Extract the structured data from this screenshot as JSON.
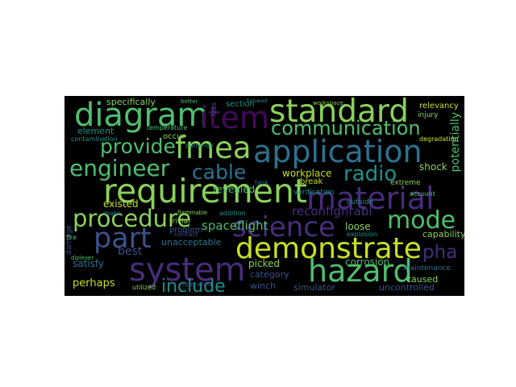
{
  "palette": {
    "background": "#000000",
    "light_green": "#8ad15a",
    "green": "#4fbf6f",
    "teal": "#23a884",
    "cyan_teal": "#21908c",
    "blue": "#2c728e",
    "indigo": "#3b528b",
    "purple": "#472d7b",
    "dark_purple": "#44095a",
    "yellow": "#c8e020"
  },
  "words": {
    "standard": "standard",
    "diagram": "diagram",
    "item": "item",
    "communication": "communication",
    "provide": "provide",
    "fmea": "fmea",
    "application": "application",
    "engineer": "engineer",
    "cable": "cable",
    "radio": "radio",
    "requirement": "requirement",
    "material": "material",
    "procedure": "procedure",
    "science": "science",
    "mode": "mode",
    "part": "part",
    "demonstrate": "demonstrate",
    "pha": "pha",
    "system": "system",
    "hazard": "hazard",
    "include": "include",
    "specifically": "specifically",
    "element": "element",
    "revealed": "revealed",
    "spaceflight": "spaceflight",
    "reconfignrabl": "reconfignrabl",
    "workplace": "workplace",
    "shock": "shock",
    "potentially": "potentially",
    "capability": "capability",
    "existed": "existed",
    "loose": "loose",
    "satisfy": "satisfy",
    "best": "best",
    "picked": "picked",
    "corrosion": "corrosion",
    "category": "category",
    "perhaps": "perhaps",
    "simulator": "simulator",
    "caused": "caused",
    "uncontrolled": "uncontrolled",
    "unacceptable": "unacceptable",
    "winch": "winch",
    "relevancy": "relevancy",
    "injury": "injury",
    "section": "section",
    "break": "break",
    "occur": "occur",
    "temperature": "temperature",
    "contamination": "contamination",
    "damage": "damage",
    "problem": "problem",
    "trivial": "trivial",
    "maintenance": "maintenance",
    "verification": "verification",
    "outside": "outside",
    "degradation": "degradation",
    "extreme": "extreme",
    "account": "account",
    "task": "task",
    "addition": "addition",
    "explosion": "explosion",
    "utilized": "utilized",
    "fire": "fire",
    "make": "make",
    "currency": "currency",
    "contact": "contact",
    "flammable": "flammable",
    "operated": "operated",
    "loss": "loss",
    "better": "better",
    "workspace": "workspace",
    "followed": "followed",
    "diplexer": "diplexer"
  }
}
